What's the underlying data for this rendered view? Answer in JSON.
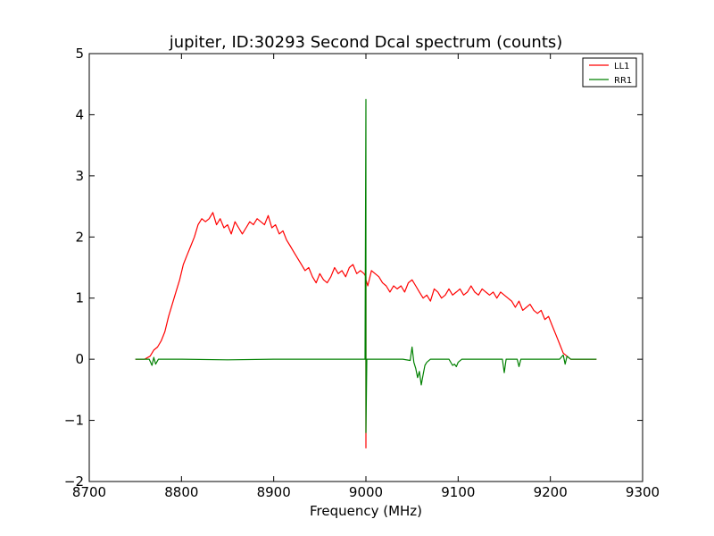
{
  "chart_data": {
    "type": "line",
    "title": "jupiter, ID:30293 Second Dcal spectrum (counts)",
    "xlabel": "Frequency (MHz)",
    "ylabel": "",
    "xlim": [
      8700,
      9300
    ],
    "ylim": [
      -2,
      5
    ],
    "x_ticks": [
      8700,
      8800,
      8900,
      9000,
      9100,
      9200,
      9300
    ],
    "y_ticks": [
      -2,
      -1,
      0,
      1,
      2,
      3,
      4,
      5
    ],
    "x_tick_labels": [
      "8700",
      "8800",
      "8900",
      "9000",
      "9100",
      "9200",
      "9300"
    ],
    "y_tick_labels": [
      "−2",
      "−1",
      "0",
      "1",
      "2",
      "3",
      "4",
      "5"
    ],
    "grid": false,
    "legend_position": "top-right",
    "series": [
      {
        "name": "LL1",
        "color": "#ff0000",
        "x": [
          8750,
          8760,
          8766,
          8770,
          8774,
          8778,
          8782,
          8786,
          8790,
          8794,
          8798,
          8802,
          8806,
          8810,
          8814,
          8818,
          8822,
          8826,
          8830,
          8834,
          8838,
          8842,
          8846,
          8850,
          8854,
          8858,
          8862,
          8866,
          8870,
          8874,
          8878,
          8882,
          8886,
          8890,
          8894,
          8898,
          8902,
          8906,
          8910,
          8914,
          8918,
          8922,
          8926,
          8930,
          8934,
          8938,
          8942,
          8946,
          8950,
          8954,
          8958,
          8962,
          8966,
          8970,
          8974,
          8978,
          8982,
          8986,
          8990,
          8994,
          8998,
          9000,
          9000,
          9000,
          9002,
          9006,
          9010,
          9014,
          9018,
          9022,
          9026,
          9030,
          9034,
          9038,
          9042,
          9046,
          9050,
          9054,
          9058,
          9062,
          9066,
          9070,
          9074,
          9078,
          9082,
          9086,
          9090,
          9094,
          9098,
          9102,
          9106,
          9110,
          9114,
          9118,
          9122,
          9126,
          9130,
          9134,
          9138,
          9142,
          9146,
          9150,
          9154,
          9158,
          9162,
          9166,
          9170,
          9174,
          9178,
          9182,
          9186,
          9190,
          9194,
          9198,
          9202,
          9206,
          9210,
          9214,
          9218,
          9222,
          9226,
          9230,
          9240,
          9250
        ],
        "y": [
          0.0,
          0.0,
          0.05,
          0.15,
          0.2,
          0.3,
          0.45,
          0.7,
          0.9,
          1.1,
          1.3,
          1.55,
          1.7,
          1.85,
          2.0,
          2.2,
          2.3,
          2.25,
          2.3,
          2.4,
          2.2,
          2.3,
          2.15,
          2.2,
          2.05,
          2.25,
          2.15,
          2.05,
          2.15,
          2.25,
          2.2,
          2.3,
          2.25,
          2.2,
          2.35,
          2.15,
          2.2,
          2.05,
          2.1,
          1.95,
          1.85,
          1.75,
          1.65,
          1.55,
          1.45,
          1.5,
          1.35,
          1.25,
          1.4,
          1.3,
          1.25,
          1.35,
          1.5,
          1.4,
          1.45,
          1.35,
          1.5,
          1.55,
          1.4,
          1.45,
          1.4,
          1.35,
          -1.45,
          1.3,
          1.2,
          1.45,
          1.4,
          1.35,
          1.25,
          1.2,
          1.1,
          1.2,
          1.15,
          1.2,
          1.1,
          1.25,
          1.3,
          1.2,
          1.1,
          1.0,
          1.05,
          0.95,
          1.15,
          1.1,
          1.0,
          1.05,
          1.15,
          1.05,
          1.1,
          1.15,
          1.05,
          1.1,
          1.2,
          1.1,
          1.05,
          1.15,
          1.1,
          1.05,
          1.1,
          1.0,
          1.1,
          1.05,
          1.0,
          0.95,
          0.85,
          0.95,
          0.8,
          0.85,
          0.9,
          0.8,
          0.75,
          0.8,
          0.65,
          0.7,
          0.55,
          0.4,
          0.25,
          0.1,
          0.05,
          0.0,
          0.0,
          0.0,
          0.0,
          0.0
        ]
      },
      {
        "name": "RR1",
        "color": "#008000",
        "x": [
          8750,
          8765,
          8768,
          8770,
          8772,
          8775,
          8800,
          8850,
          8900,
          8950,
          8999,
          9000,
          9000,
          9001,
          9010,
          9040,
          9048,
          9050,
          9052,
          9054,
          9056,
          9058,
          9060,
          9062,
          9064,
          9066,
          9070,
          9090,
          9094,
          9096,
          9098,
          9100,
          9104,
          9130,
          9148,
          9150,
          9152,
          9164,
          9166,
          9168,
          9200,
          9210,
          9214,
          9216,
          9218,
          9222,
          9230,
          9250
        ],
        "y": [
          0.0,
          0.0,
          -0.1,
          0.03,
          -0.08,
          0.0,
          0.0,
          -0.01,
          0.0,
          0.0,
          0.0,
          4.25,
          -1.2,
          0.0,
          0.0,
          0.0,
          -0.02,
          0.2,
          -0.05,
          -0.15,
          -0.3,
          -0.2,
          -0.42,
          -0.25,
          -0.1,
          -0.05,
          0.0,
          0.0,
          -0.1,
          -0.08,
          -0.12,
          -0.05,
          0.0,
          0.0,
          0.0,
          -0.22,
          0.0,
          0.0,
          -0.12,
          0.0,
          0.0,
          0.0,
          0.07,
          -0.08,
          0.05,
          0.0,
          0.0,
          0.0
        ]
      }
    ]
  }
}
